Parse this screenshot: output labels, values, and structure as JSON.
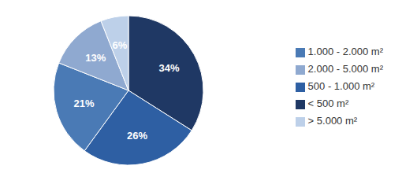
{
  "chart_data": {
    "type": "pie",
    "categories": [
      "< 500 m²",
      "500 - 1.000 m²",
      "1.000 - 2.000 m²",
      "2.000 - 5.000 m²",
      "> 5.000 m²"
    ],
    "values": [
      34,
      26,
      21,
      13,
      6
    ],
    "value_labels": [
      "34%",
      "26%",
      "21%",
      "13%",
      "6%"
    ],
    "data_labels": true,
    "colors": [
      "#1F3864",
      "#2E5FA3",
      "#4A7AB5",
      "#8FA9D0",
      "#BDD0E9"
    ],
    "legend": "right"
  }
}
